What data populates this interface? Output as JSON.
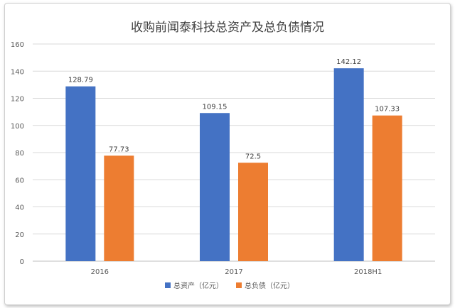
{
  "chart_data": {
    "type": "bar",
    "title": "收购前闻泰科技总资产及总负债情况",
    "categories": [
      "2016",
      "2017",
      "2018H1"
    ],
    "series": [
      {
        "name": "总资产（亿元）",
        "values": [
          128.79,
          109.15,
          142.12
        ],
        "color": "#4472C4"
      },
      {
        "name": "总负债（亿元）",
        "values": [
          77.73,
          72.5,
          107.33
        ],
        "color": "#ED7D31"
      }
    ],
    "data_labels": [
      [
        "128.79",
        "109.15",
        "142.12"
      ],
      [
        "77.73",
        "72.5",
        "107.33"
      ]
    ],
    "ylim": [
      0,
      160
    ],
    "yticks": [
      0,
      20,
      40,
      60,
      80,
      100,
      120,
      140,
      160
    ],
    "grid": true,
    "legend_position": "bottom"
  }
}
